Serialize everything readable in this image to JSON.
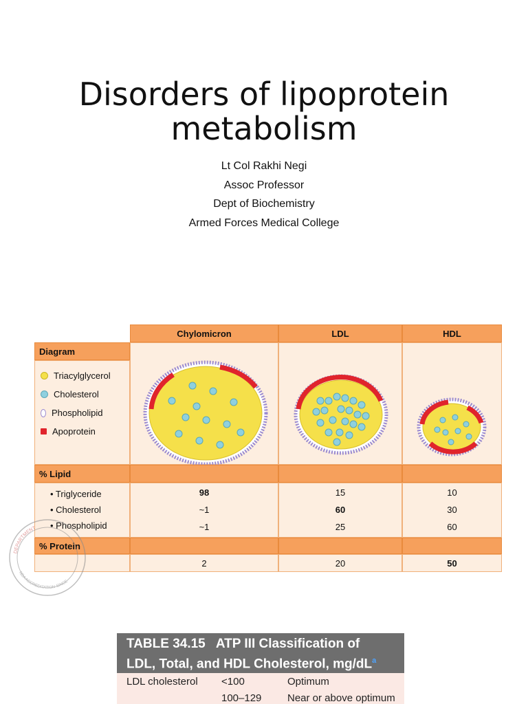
{
  "slide": {
    "title_line1": "Disorders of lipoprotein",
    "title_line2": "metabolism",
    "author": "Lt Col Rakhi Negi",
    "position": "Assoc Professor",
    "department": "Dept of Biochemistry",
    "institution": "Armed Forces Medical College"
  },
  "lipo_table": {
    "columns": [
      "Chylomicron",
      "LDL",
      "HDL"
    ],
    "diagram_label": "Diagram",
    "legend": [
      {
        "label": "Triacylglycerol",
        "color": "#f5e04a"
      },
      {
        "label": "Cholesterol",
        "color": "#8fd0df"
      },
      {
        "label": "Phospholipid",
        "color": "#d9ccf0"
      },
      {
        "label": "Apoprotein",
        "color": "#e0242c"
      }
    ],
    "lipid_label": "% Lipid",
    "rows": [
      {
        "label": "• Triglyceride",
        "values": [
          "98",
          "15",
          "10"
        ]
      },
      {
        "label": "• Cholesterol",
        "values": [
          "~1",
          "60",
          "30"
        ]
      },
      {
        "label": "• Phospholipid",
        "values": [
          "~1",
          "25",
          "60"
        ]
      }
    ],
    "protein_label": "% Protein",
    "protein_values": [
      "2",
      "20",
      "50"
    ],
    "colors": {
      "header": "#f6a05c",
      "body": "#fdeee0",
      "apoprotein": "#e0242c"
    }
  },
  "seal": {
    "text_top": "DEPARTMENT",
    "text_bottom": "NBA ACCREDITATION SINCE"
  },
  "atp_table": {
    "title_line1": "TABLE 34.15   ATP III Classification of",
    "title_line2": "LDL, Total, and HDL Cholesterol, mg/dL",
    "marker": "a",
    "row1": {
      "name": "LDL cholesterol",
      "range": "<100",
      "class": "Optimum"
    },
    "row2": {
      "name": "",
      "range": "100–129",
      "class": "Near or above optimum"
    }
  }
}
